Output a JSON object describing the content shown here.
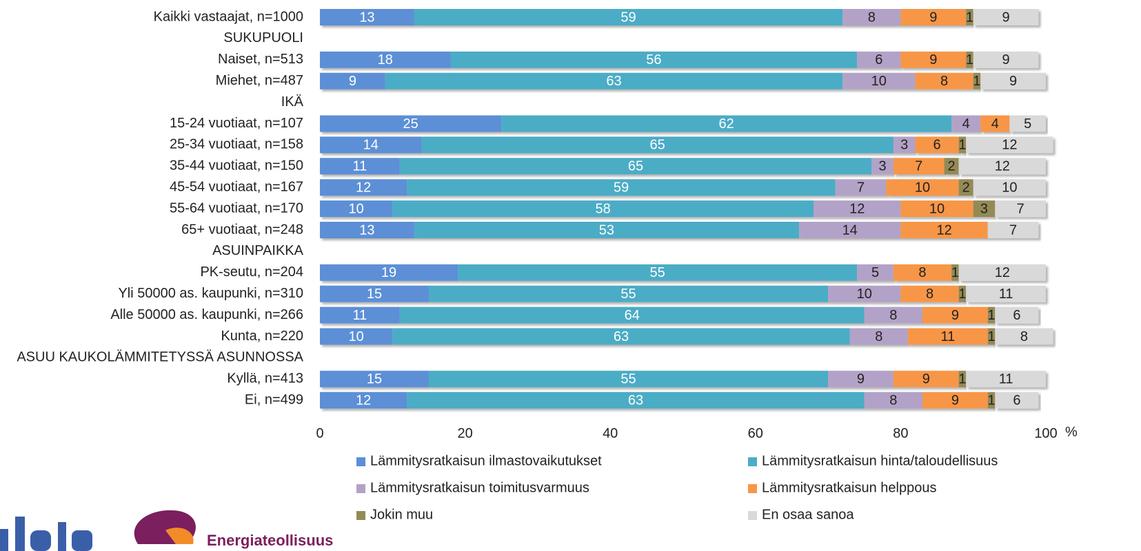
{
  "chart_data": {
    "type": "stacked-bar-horizontal",
    "categories": [
      "Kaikki vastaajat, n=1000",
      "SUKUPUOLI",
      "Naiset, n=513",
      "Miehet, n=487",
      "IKÄ",
      "15-24 vuotiaat, n=107",
      "25-34 vuotiaat, n=158",
      "35-44 vuotiaat, n=150",
      "45-54 vuotiaat, n=167",
      "55-64 vuotiaat, n=170",
      "65+ vuotiaat, n=248",
      "ASUINPAIKKA",
      "PK-seutu, n=204",
      "Yli 50000 as. kaupunki, n=310",
      "Alle 50000 as. kaupunki, n=266",
      "Kunta, n=220",
      "ASUU KAUKOLÄMMITETYSSÄ ASUNNOSSA",
      "Kyllä, n=413",
      "Ei, n=499"
    ],
    "series": [
      {
        "name": "Lämmitysratkaisun ilmastovaikutukset",
        "color": "#5b8fd6",
        "values": [
          13,
          null,
          18,
          9,
          null,
          25,
          14,
          11,
          12,
          10,
          13,
          null,
          19,
          15,
          11,
          10,
          null,
          15,
          12
        ]
      },
      {
        "name": "Lämmitysratkaisun hinta/taloudellisuus",
        "color": "#4bacc6",
        "values": [
          59,
          null,
          56,
          63,
          null,
          62,
          65,
          65,
          59,
          58,
          53,
          null,
          55,
          55,
          64,
          63,
          null,
          55,
          63
        ]
      },
      {
        "name": "Lämmitysratkaisun toimitusvarmuus",
        "color": "#b3a2c7",
        "values": [
          8,
          null,
          6,
          10,
          null,
          4,
          3,
          3,
          7,
          12,
          14,
          null,
          5,
          10,
          8,
          8,
          null,
          9,
          8
        ]
      },
      {
        "name": "Lämmitysratkaisun helppous",
        "color": "#f79646",
        "values": [
          9,
          null,
          9,
          8,
          null,
          4,
          6,
          7,
          10,
          10,
          12,
          null,
          8,
          8,
          9,
          11,
          null,
          9,
          9
        ]
      },
      {
        "name": "Jokin muu",
        "color": "#948a54",
        "values": [
          1,
          null,
          1,
          1,
          null,
          null,
          1,
          2,
          2,
          3,
          null,
          null,
          1,
          1,
          1,
          1,
          null,
          1,
          1
        ]
      },
      {
        "name": "En osaa sanoa",
        "color": "#d9d9d9",
        "values": [
          9,
          null,
          9,
          9,
          null,
          5,
          12,
          12,
          10,
          7,
          7,
          null,
          12,
          11,
          6,
          8,
          null,
          11,
          6
        ]
      }
    ],
    "xlim": [
      0,
      100
    ],
    "xticks": [
      0,
      20,
      40,
      60,
      80,
      100
    ],
    "x_unit": "%",
    "logo_text": "Energiateollisuus"
  }
}
